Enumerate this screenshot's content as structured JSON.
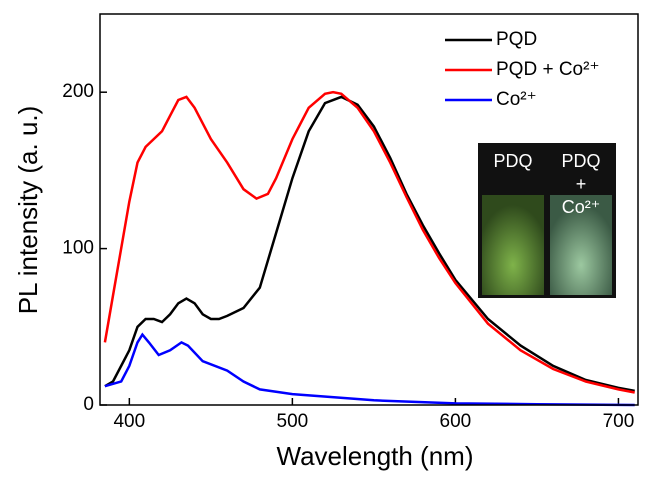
{
  "chart_data": {
    "type": "line",
    "xlabel": "Wavelength (nm)",
    "ylabel": "PL intensity (a. u.)",
    "xlim": [
      382,
      712
    ],
    "ylim": [
      0,
      250
    ],
    "xticks": [
      400,
      500,
      600,
      700
    ],
    "yticks": [
      0,
      100,
      200
    ],
    "legend": "upper right",
    "series": [
      {
        "name": "PQD",
        "color": "#000000",
        "x": [
          385,
          390,
          400,
          405,
          410,
          415,
          420,
          425,
          430,
          435,
          440,
          445,
          450,
          455,
          460,
          470,
          480,
          490,
          500,
          510,
          520,
          530,
          540,
          550,
          560,
          570,
          580,
          590,
          600,
          620,
          640,
          660,
          680,
          700,
          710
        ],
        "values": [
          12,
          15,
          35,
          50,
          55,
          55,
          53,
          58,
          65,
          68,
          65,
          58,
          55,
          55,
          57,
          62,
          75,
          110,
          145,
          175,
          193,
          197,
          192,
          178,
          158,
          135,
          115,
          97,
          80,
          55,
          38,
          25,
          16,
          11,
          9
        ]
      },
      {
        "name": "PQD + Co²⁺",
        "color": "#ff0000",
        "x": [
          385,
          390,
          400,
          405,
          410,
          420,
          425,
          430,
          435,
          440,
          450,
          460,
          470,
          478,
          485,
          490,
          500,
          510,
          520,
          525,
          530,
          540,
          550,
          560,
          570,
          580,
          590,
          600,
          620,
          640,
          660,
          680,
          700,
          710
        ],
        "values": [
          40,
          70,
          130,
          155,
          165,
          175,
          185,
          195,
          197,
          190,
          170,
          155,
          138,
          132,
          135,
          145,
          170,
          190,
          199,
          200,
          199,
          190,
          175,
          155,
          133,
          112,
          94,
          78,
          52,
          35,
          23,
          15,
          10,
          8
        ]
      },
      {
        "name": "Co²⁺",
        "color": "#0000ff",
        "x": [
          385,
          395,
          400,
          405,
          408,
          412,
          418,
          425,
          432,
          436,
          445,
          460,
          470,
          480,
          500,
          550,
          600,
          650,
          710
        ],
        "values": [
          12,
          15,
          25,
          40,
          45,
          40,
          32,
          35,
          40,
          38,
          28,
          22,
          15,
          10,
          7,
          3,
          1,
          0.5,
          0
        ]
      }
    ],
    "inset": {
      "left": "PDQ",
      "right": [
        "PDQ",
        "+",
        "Co²⁺"
      ]
    }
  }
}
